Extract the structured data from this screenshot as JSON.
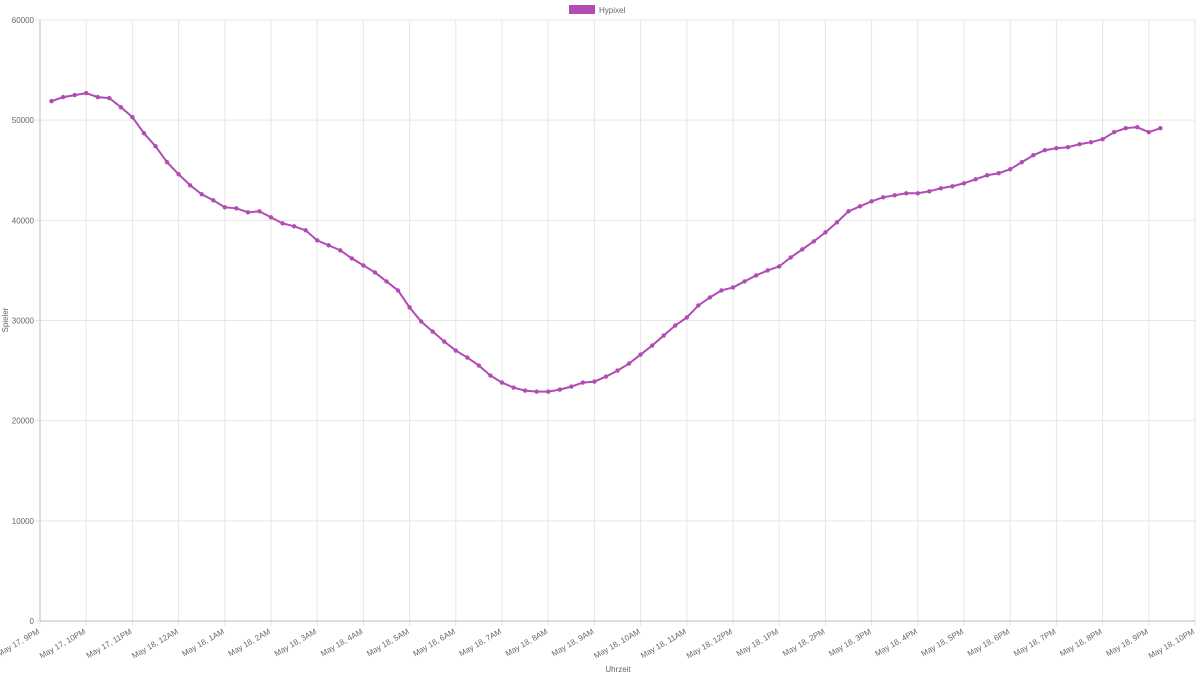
{
  "chart_data": {
    "type": "line",
    "xlabel": "Uhrzeit",
    "ylabel": "Spieler",
    "x": [
      0.25,
      0.5,
      0.75,
      1,
      1.25,
      1.5,
      1.75,
      2,
      2.25,
      2.5,
      2.75,
      3,
      3.25,
      3.5,
      3.75,
      4,
      4.25,
      4.5,
      4.75,
      5,
      5.25,
      5.5,
      5.75,
      6,
      6.25,
      6.5,
      6.75,
      7,
      7.25,
      7.5,
      7.75,
      8,
      8.25,
      8.5,
      8.75,
      9,
      9.25,
      9.5,
      9.75,
      10,
      10.25,
      10.5,
      10.75,
      11,
      11.25,
      11.5,
      11.75,
      12,
      12.25,
      12.5,
      12.75,
      13,
      13.25,
      13.5,
      13.75,
      14,
      14.25,
      14.5,
      14.75,
      15,
      15.25,
      15.5,
      15.75,
      16,
      16.25,
      16.5,
      16.75,
      17,
      17.25,
      17.5,
      17.75,
      18,
      18.25,
      18.5,
      18.75,
      19,
      19.25,
      19.5,
      19.75,
      20,
      20.25,
      20.5,
      20.75,
      21,
      21.25,
      21.5,
      21.75,
      22,
      22.25,
      22.5,
      22.75,
      23,
      23.25,
      23.5,
      23.75,
      24,
      24.25
    ],
    "series": [
      {
        "name": "Hypixel",
        "color": "#b04cb4",
        "values": [
          51900,
          52300,
          52500,
          52700,
          52300,
          52200,
          51300,
          50300,
          48700,
          47400,
          45800,
          44600,
          43500,
          42600,
          42000,
          41300,
          41200,
          40800,
          40900,
          40300,
          39700,
          39400,
          39000,
          38000,
          37500,
          37000,
          36200,
          35500,
          34800,
          33900,
          33000,
          31300,
          29900,
          28900,
          27900,
          27000,
          26300,
          25500,
          24500,
          23800,
          23300,
          23000,
          22900,
          22900,
          23100,
          23400,
          23800,
          23900,
          24400,
          25000,
          25700,
          26600,
          27500,
          28500,
          29500,
          30300,
          31500,
          32300,
          33000,
          33300,
          33900,
          34500,
          35000,
          35400,
          36300,
          37100,
          37900,
          38800,
          39800,
          40900,
          41400,
          41900,
          42300,
          42500,
          42700,
          42700,
          42900,
          43200,
          43400,
          43700,
          44100,
          44500,
          44700,
          45100,
          45800,
          46500,
          47000,
          47200,
          47300,
          47600,
          47800,
          48100,
          48800,
          49200,
          49300,
          48800,
          49200
        ]
      }
    ],
    "xlim": [
      0,
      25
    ],
    "xticks": [
      {
        "value": 0,
        "label": "May 17, 9PM"
      },
      {
        "value": 1,
        "label": "May 17, 10PM"
      },
      {
        "value": 2,
        "label": "May 17, 11PM"
      },
      {
        "value": 3,
        "label": "May 18, 12AM"
      },
      {
        "value": 4,
        "label": "May 18, 1AM"
      },
      {
        "value": 5,
        "label": "May 18, 2AM"
      },
      {
        "value": 6,
        "label": "May 18, 3AM"
      },
      {
        "value": 7,
        "label": "May 18, 4AM"
      },
      {
        "value": 8,
        "label": "May 18, 5AM"
      },
      {
        "value": 9,
        "label": "May 18, 6AM"
      },
      {
        "value": 10,
        "label": "May 18, 7AM"
      },
      {
        "value": 11,
        "label": "May 18, 8AM"
      },
      {
        "value": 12,
        "label": "May 18, 9AM"
      },
      {
        "value": 13,
        "label": "May 18, 10AM"
      },
      {
        "value": 14,
        "label": "May 18, 11AM"
      },
      {
        "value": 15,
        "label": "May 18, 12PM"
      },
      {
        "value": 16,
        "label": "May 18, 1PM"
      },
      {
        "value": 17,
        "label": "May 18, 2PM"
      },
      {
        "value": 18,
        "label": "May 18, 3PM"
      },
      {
        "value": 19,
        "label": "May 18, 4PM"
      },
      {
        "value": 20,
        "label": "May 18, 5PM"
      },
      {
        "value": 21,
        "label": "May 18, 6PM"
      },
      {
        "value": 22,
        "label": "May 18, 7PM"
      },
      {
        "value": 23,
        "label": "May 18, 8PM"
      },
      {
        "value": 24,
        "label": "May 18, 9PM"
      },
      {
        "value": 25,
        "label": "May 18, 10PM"
      }
    ],
    "ylim": [
      0,
      60000
    ],
    "yticks": [
      0,
      10000,
      20000,
      30000,
      40000,
      50000,
      60000
    ],
    "grid": true,
    "legend": "top"
  }
}
